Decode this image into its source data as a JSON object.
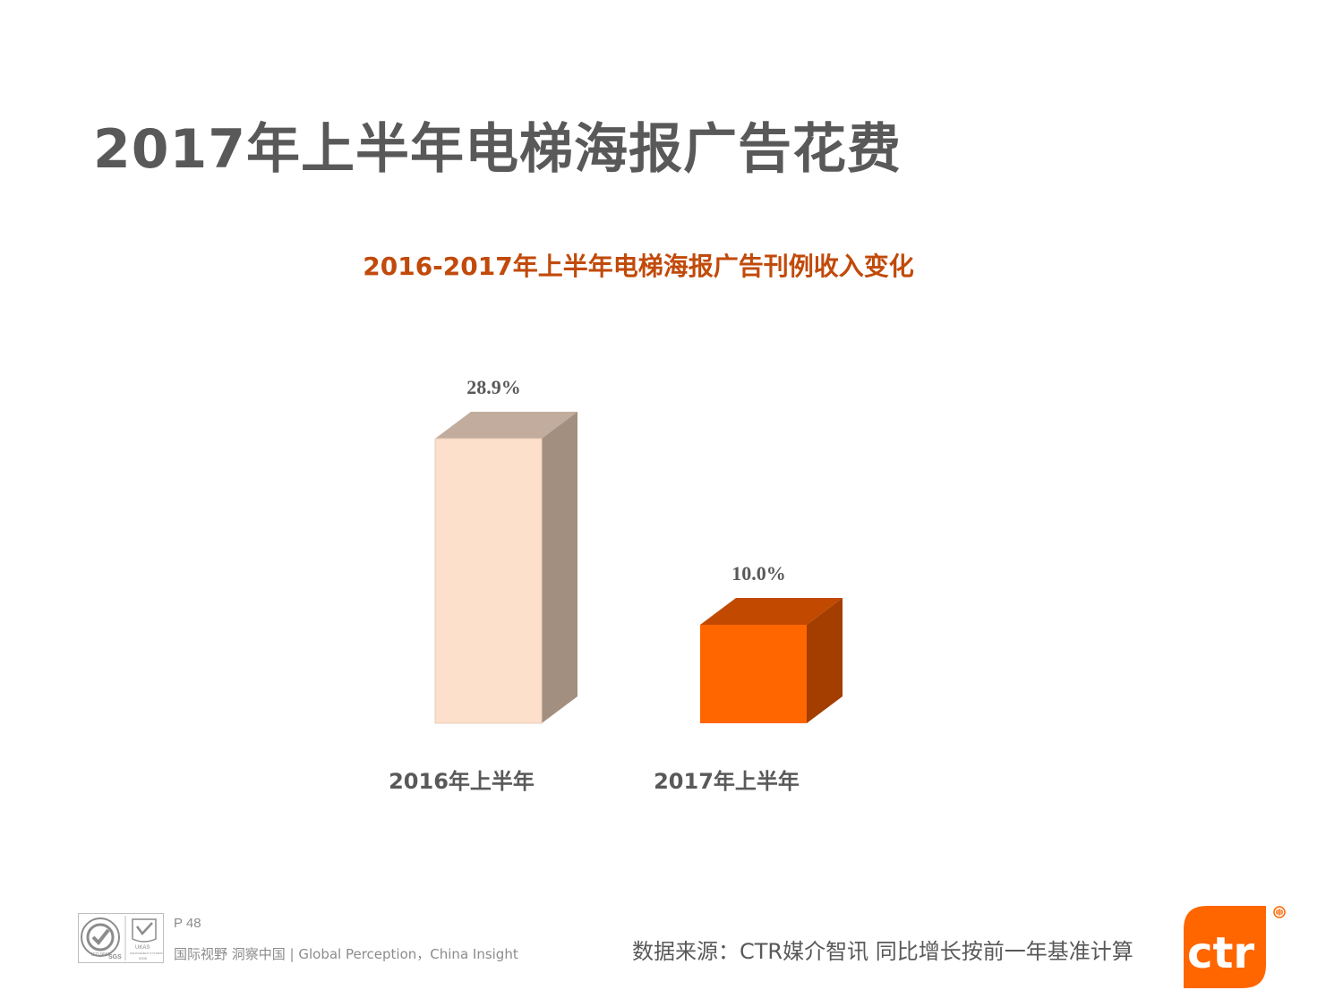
{
  "page": {
    "title": "2017年上半年电梯海报广告花费",
    "page_number": "P 48",
    "tagline": "国际视野  洞察中国 |  Global Perception，China Insight",
    "source": "数据来源：CTR媒介智讯   同比增长按前一年基准计算",
    "logo_text": "ctr",
    "cert_text": {
      "seal": "ISO 9001",
      "sgs": "SGS",
      "ukas": "UKAS",
      "ukas_sub": "MANAGEMENT SYSTEMS",
      "ukas_code": "0005"
    }
  },
  "colors": {
    "title": "#595959",
    "chart_title": "#c14a0a",
    "accent": "#ff6600",
    "bar_2016_front": "#fde0cc",
    "bar_2016_top": "#c1ac9d",
    "bar_2016_side": "#a38f80",
    "bar_2017_front": "#ff6600",
    "bar_2017_top": "#c14a00",
    "bar_2017_side": "#a33e00"
  },
  "chart_data": {
    "type": "bar",
    "title": "2016-2017年上半年电梯海报广告刊例收入变化",
    "categories": [
      "2016年上半年",
      "2017年上半年"
    ],
    "values": [
      28.9,
      10.0
    ],
    "value_labels": [
      "28.9%",
      "10.0%"
    ],
    "unit": "%",
    "ylim": [
      0,
      30
    ],
    "grid": false,
    "style": "3d-column",
    "xlabel": "",
    "ylabel": ""
  }
}
